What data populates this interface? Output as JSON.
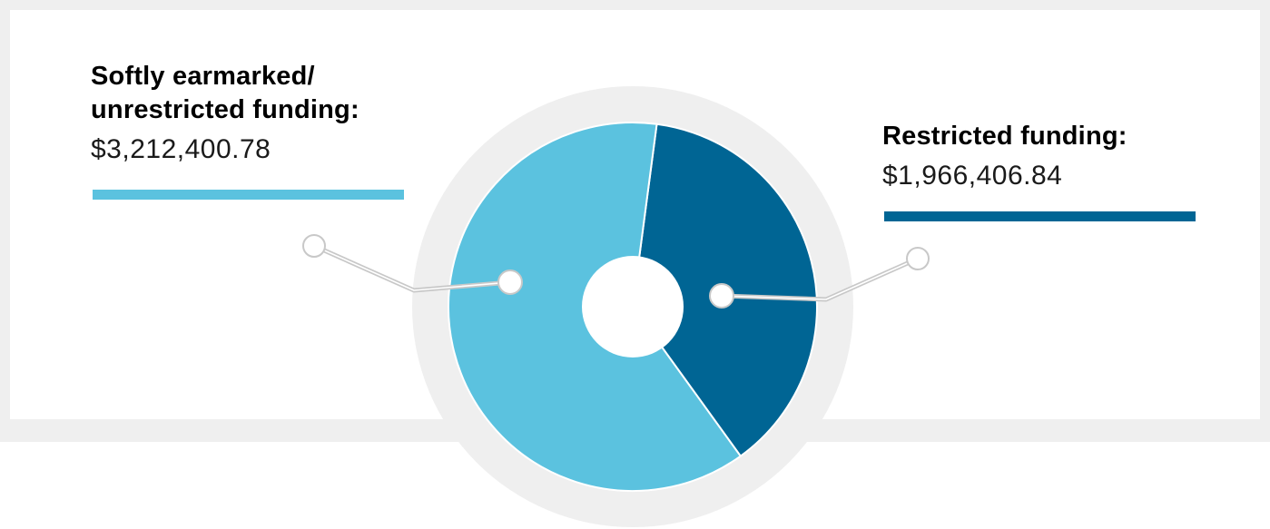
{
  "chart_data": {
    "type": "pie",
    "donut": true,
    "slices": [
      {
        "title": "Softly earmarked/ unrestricted funding:",
        "value": 3212400.78,
        "value_label": "$3,212,400.78",
        "color": "#5bc2df"
      },
      {
        "title": "Restricted funding:",
        "value": 1966406.84,
        "value_label": "$1,966,406.84",
        "color": "#006594"
      }
    ]
  },
  "colors": {
    "frame": "#efefef",
    "connector": "#c8c8c8"
  }
}
